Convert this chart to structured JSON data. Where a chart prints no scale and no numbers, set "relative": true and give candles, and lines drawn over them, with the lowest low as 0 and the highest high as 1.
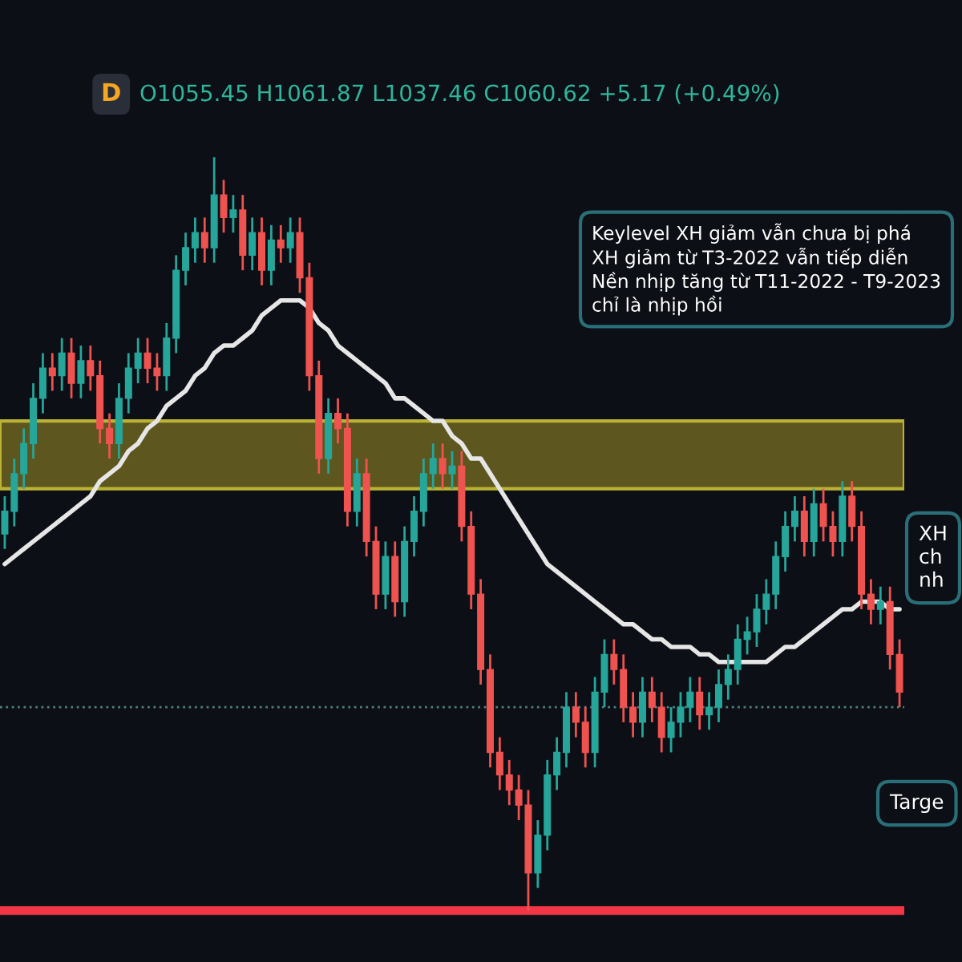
{
  "chart_data": {
    "type": "candlestick",
    "relative": true,
    "title": "D",
    "subtitle": "O1055.45 H1061.87 L1037.46 C1060.62 +5.17 (+0.49%)",
    "categories": [
      null,
      null,
      null,
      null,
      null,
      null,
      null,
      null,
      null,
      null,
      null,
      null,
      null,
      null,
      null,
      null,
      null,
      null,
      null,
      null,
      null,
      null,
      null,
      null,
      null,
      null,
      null,
      null,
      null,
      null,
      null,
      null,
      null,
      null,
      null,
      null,
      null,
      null,
      null,
      null,
      null,
      null,
      null,
      null,
      null,
      null,
      null,
      null,
      null,
      null,
      null,
      null,
      null,
      null,
      null,
      null,
      null,
      null,
      null,
      null,
      null,
      null,
      null,
      null,
      null,
      null,
      null,
      null,
      null,
      null,
      null,
      null,
      null,
      null,
      null,
      null,
      null,
      null,
      null,
      null,
      null,
      null,
      null,
      null,
      null,
      null,
      null,
      null,
      null,
      null,
      null,
      null,
      null,
      null,
      null
    ],
    "colors": [
      "#26a69a",
      "#26a69a",
      "#26a69a",
      "#26a69a",
      "#26a69a",
      "#ef5350",
      "#26a69a",
      "#ef5350",
      "#26a69a",
      "#ef5350",
      "#ef5350",
      "#ef5350",
      "#26a69a",
      "#26a69a",
      "#26a69a",
      "#ef5350",
      "#ef5350",
      "#26a69a",
      "#26a69a",
      "#26a69a",
      "#26a69a",
      "#ef5350",
      "#26a69a",
      "#ef5350",
      "#26a69a",
      "#ef5350",
      "#26a69a",
      "#ef5350",
      "#26a69a",
      "#ef5350",
      "#26a69a",
      "#ef5350",
      "#ef5350",
      "#ef5350",
      "#26a69a",
      "#ef5350",
      "#ef5350",
      "#26a69a",
      "#ef5350",
      "#ef5350",
      "#26a69a",
      "#ef5350",
      "#26a69a",
      "#26a69a",
      "#26a69a",
      "#26a69a",
      "#ef5350",
      "#26a69a",
      "#ef5350",
      "#ef5350",
      "#ef5350",
      "#ef5350",
      "#ef5350",
      "#ef5350",
      "#ef5350",
      "#ef5350",
      "#26a69a",
      "#26a69a",
      "#26a69a",
      "#26a69a",
      "#ef5350",
      "#ef5350",
      "#26a69a",
      "#26a69a",
      "#ef5350",
      "#ef5350",
      "#ef5350",
      "#26a69a",
      "#ef5350",
      "#ef5350",
      "#26a69a",
      "#26a69a",
      "#26a69a",
      "#ef5350",
      "#26a69a",
      "#26a69a",
      "#26a69a",
      "#26a69a",
      "#26a69a",
      "#26a69a",
      "#26a69a",
      "#26a69a",
      "#26a69a",
      "#26a69a",
      "#ef5350",
      "#26a69a",
      "#ef5350",
      "#ef5350",
      "#26a69a",
      "#ef5350",
      "#ef5350",
      "#ef5350",
      "#26a69a",
      "#ef5350",
      "#ef5350"
    ],
    "ohlc": [
      [
        0.5,
        0.55,
        0.48,
        0.53
      ],
      [
        0.53,
        0.6,
        0.51,
        0.58
      ],
      [
        0.58,
        0.64,
        0.56,
        0.62
      ],
      [
        0.62,
        0.7,
        0.6,
        0.68
      ],
      [
        0.68,
        0.74,
        0.66,
        0.72
      ],
      [
        0.72,
        0.74,
        0.69,
        0.71
      ],
      [
        0.71,
        0.76,
        0.69,
        0.74
      ],
      [
        0.74,
        0.76,
        0.68,
        0.7
      ],
      [
        0.7,
        0.75,
        0.68,
        0.73
      ],
      [
        0.73,
        0.75,
        0.69,
        0.71
      ],
      [
        0.71,
        0.73,
        0.62,
        0.64
      ],
      [
        0.64,
        0.66,
        0.6,
        0.62
      ],
      [
        0.62,
        0.7,
        0.6,
        0.68
      ],
      [
        0.68,
        0.74,
        0.66,
        0.72
      ],
      [
        0.72,
        0.76,
        0.7,
        0.74
      ],
      [
        0.74,
        0.76,
        0.7,
        0.72
      ],
      [
        0.72,
        0.74,
        0.69,
        0.71
      ],
      [
        0.71,
        0.78,
        0.69,
        0.76
      ],
      [
        0.76,
        0.87,
        0.74,
        0.85
      ],
      [
        0.85,
        0.9,
        0.83,
        0.88
      ],
      [
        0.88,
        0.92,
        0.86,
        0.9
      ],
      [
        0.9,
        0.92,
        0.86,
        0.88
      ],
      [
        0.88,
        1.0,
        0.86,
        0.95
      ],
      [
        0.95,
        0.97,
        0.9,
        0.92
      ],
      [
        0.92,
        0.95,
        0.9,
        0.93
      ],
      [
        0.93,
        0.95,
        0.85,
        0.87
      ],
      [
        0.87,
        0.92,
        0.85,
        0.9
      ],
      [
        0.9,
        0.92,
        0.83,
        0.85
      ],
      [
        0.85,
        0.91,
        0.83,
        0.89
      ],
      [
        0.89,
        0.91,
        0.86,
        0.88
      ],
      [
        0.88,
        0.92,
        0.86,
        0.9
      ],
      [
        0.9,
        0.92,
        0.82,
        0.84
      ],
      [
        0.84,
        0.86,
        0.69,
        0.71
      ],
      [
        0.71,
        0.73,
        0.58,
        0.6
      ],
      [
        0.6,
        0.68,
        0.58,
        0.66
      ],
      [
        0.66,
        0.68,
        0.62,
        0.64
      ],
      [
        0.64,
        0.66,
        0.51,
        0.53
      ],
      [
        0.53,
        0.6,
        0.51,
        0.58
      ],
      [
        0.58,
        0.6,
        0.47,
        0.49
      ],
      [
        0.49,
        0.51,
        0.4,
        0.42
      ],
      [
        0.42,
        0.49,
        0.4,
        0.47
      ],
      [
        0.47,
        0.49,
        0.39,
        0.41
      ],
      [
        0.41,
        0.51,
        0.39,
        0.49
      ],
      [
        0.49,
        0.55,
        0.47,
        0.53
      ],
      [
        0.53,
        0.6,
        0.51,
        0.58
      ],
      [
        0.58,
        0.62,
        0.56,
        0.6
      ],
      [
        0.6,
        0.62,
        0.56,
        0.58
      ],
      [
        0.58,
        0.61,
        0.56,
        0.59
      ],
      [
        0.59,
        0.61,
        0.49,
        0.51
      ],
      [
        0.51,
        0.53,
        0.4,
        0.42
      ],
      [
        0.42,
        0.44,
        0.3,
        0.32
      ],
      [
        0.32,
        0.34,
        0.19,
        0.21
      ],
      [
        0.21,
        0.23,
        0.16,
        0.18
      ],
      [
        0.18,
        0.2,
        0.14,
        0.16
      ],
      [
        0.16,
        0.18,
        0.12,
        0.14
      ],
      [
        0.14,
        0.16,
        0.0,
        0.05
      ],
      [
        0.05,
        0.12,
        0.03,
        0.1
      ],
      [
        0.1,
        0.2,
        0.08,
        0.18
      ],
      [
        0.18,
        0.23,
        0.16,
        0.21
      ],
      [
        0.21,
        0.29,
        0.19,
        0.27
      ],
      [
        0.27,
        0.29,
        0.23,
        0.25
      ],
      [
        0.25,
        0.27,
        0.19,
        0.21
      ],
      [
        0.21,
        0.31,
        0.19,
        0.29
      ],
      [
        0.29,
        0.36,
        0.27,
        0.34
      ],
      [
        0.34,
        0.36,
        0.3,
        0.32
      ],
      [
        0.32,
        0.34,
        0.25,
        0.27
      ],
      [
        0.27,
        0.29,
        0.23,
        0.25
      ],
      [
        0.25,
        0.31,
        0.23,
        0.29
      ],
      [
        0.29,
        0.31,
        0.25,
        0.27
      ],
      [
        0.27,
        0.29,
        0.21,
        0.23
      ],
      [
        0.23,
        0.27,
        0.21,
        0.25
      ],
      [
        0.25,
        0.29,
        0.23,
        0.27
      ],
      [
        0.27,
        0.31,
        0.25,
        0.29
      ],
      [
        0.29,
        0.31,
        0.24,
        0.26
      ],
      [
        0.26,
        0.29,
        0.24,
        0.27
      ],
      [
        0.27,
        0.32,
        0.25,
        0.3
      ],
      [
        0.3,
        0.34,
        0.28,
        0.32
      ],
      [
        0.32,
        0.38,
        0.3,
        0.36
      ],
      [
        0.36,
        0.39,
        0.34,
        0.37
      ],
      [
        0.37,
        0.42,
        0.35,
        0.4
      ],
      [
        0.4,
        0.44,
        0.38,
        0.42
      ],
      [
        0.42,
        0.49,
        0.4,
        0.47
      ],
      [
        0.47,
        0.53,
        0.45,
        0.51
      ],
      [
        0.51,
        0.55,
        0.49,
        0.53
      ],
      [
        0.53,
        0.55,
        0.47,
        0.49
      ],
      [
        0.49,
        0.56,
        0.47,
        0.54
      ],
      [
        0.54,
        0.56,
        0.49,
        0.51
      ],
      [
        0.51,
        0.53,
        0.47,
        0.49
      ],
      [
        0.49,
        0.57,
        0.47,
        0.55
      ],
      [
        0.55,
        0.57,
        0.49,
        0.51
      ],
      [
        0.51,
        0.53,
        0.4,
        0.42
      ],
      [
        0.42,
        0.44,
        0.38,
        0.4
      ],
      [
        0.4,
        0.43,
        0.38,
        0.41
      ],
      [
        0.41,
        0.43,
        0.32,
        0.34
      ],
      [
        0.34,
        0.36,
        0.27,
        0.29
      ]
    ],
    "series": [
      {
        "type": "line",
        "color": "#e6e6e6",
        "values": [
          0.46,
          0.47,
          0.48,
          0.49,
          0.5,
          0.51,
          0.52,
          0.53,
          0.54,
          0.55,
          0.57,
          0.58,
          0.59,
          0.61,
          0.62,
          0.64,
          0.65,
          0.67,
          0.68,
          0.69,
          0.71,
          0.72,
          0.74,
          0.75,
          0.75,
          0.76,
          0.77,
          0.79,
          0.8,
          0.81,
          0.81,
          0.81,
          0.8,
          0.78,
          0.77,
          0.75,
          0.74,
          0.73,
          0.72,
          0.71,
          0.7,
          0.68,
          0.68,
          0.67,
          0.66,
          0.65,
          0.65,
          0.63,
          0.62,
          0.6,
          0.6,
          0.58,
          0.56,
          0.54,
          0.52,
          0.5,
          0.48,
          0.46,
          0.45,
          0.44,
          0.43,
          0.42,
          0.41,
          0.4,
          0.39,
          0.38,
          0.38,
          0.37,
          0.36,
          0.36,
          0.35,
          0.35,
          0.35,
          0.34,
          0.34,
          0.33,
          0.33,
          0.33,
          0.33,
          0.33,
          0.33,
          0.34,
          0.35,
          0.35,
          0.36,
          0.37,
          0.38,
          0.39,
          0.4,
          0.4,
          0.41,
          0.41,
          0.41,
          0.4,
          0.4
        ]
      }
    ],
    "bands": [
      {
        "axis": "y",
        "from": 0.56,
        "to": 0.65,
        "color": "#6b6320"
      }
    ],
    "ref_lines": [
      {
        "axis": "y",
        "value": 0.27,
        "color": "#4f7f7c",
        "line_style": "dotted"
      },
      {
        "axis": "y",
        "value": 0,
        "color": "#f23645",
        "line_style": "solid"
      }
    ],
    "annotations": [
      "Keylevel XH giảm vẫn chưa bị phá\nXH giảm từ T3-2022 vẫn tiếp diễn\nNền nhịp tăng từ T11-2022 - T9-2023\nchỉ là nhịp hồi",
      "XH\nch\nnh",
      "Targe"
    ],
    "legend": false
  }
}
